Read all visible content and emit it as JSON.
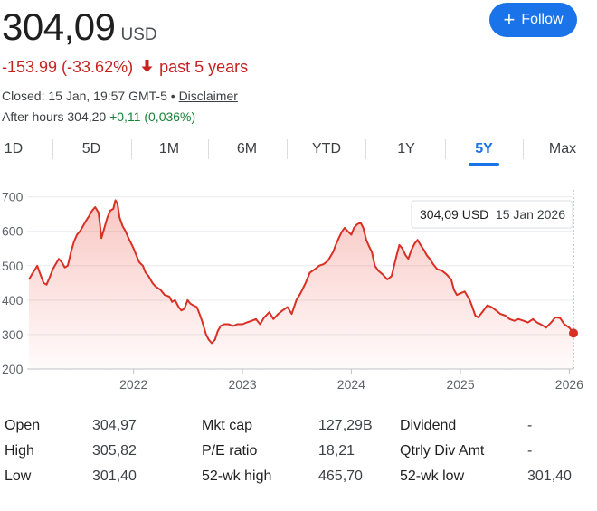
{
  "header": {
    "price": "304,09",
    "currency": "USD",
    "follow_label": "Follow",
    "follow_icon": "plus-icon",
    "change": "-153.99 (-33.62%)",
    "change_icon": "arrow-down-icon",
    "change_period": "past 5 years",
    "closed_text": "Closed: 15 Jan, 19:57 GMT-5 •",
    "disclaimer": "Disclaimer",
    "after_hours_label": "After hours 304,20",
    "after_hours_change": "+0,11 (0,036%)"
  },
  "colors": {
    "negative": "#c5221f",
    "positive": "#188038",
    "accent": "#1a73e8",
    "line": "#d93025"
  },
  "tabs": [
    {
      "label": "1D"
    },
    {
      "label": "5D"
    },
    {
      "label": "1M"
    },
    {
      "label": "6M"
    },
    {
      "label": "YTD"
    },
    {
      "label": "1Y"
    },
    {
      "label": "5Y",
      "active": true
    },
    {
      "label": "Max"
    }
  ],
  "chart_data": {
    "type": "area",
    "x_ticks": [
      "2022",
      "2023",
      "2024",
      "2025",
      "2026"
    ],
    "y_ticks": [
      200,
      300,
      400,
      500,
      600,
      700
    ],
    "ylim": [
      200,
      720
    ],
    "x_range": [
      "2021-01-15",
      "2026-01-15"
    ],
    "tooltip": {
      "price": "304,09 USD",
      "date": "15 Jan 2026"
    },
    "series": [
      {
        "points": [
          [
            "2021-01-15",
            460
          ],
          [
            "2021-01-25",
            475
          ],
          [
            "2021-02-05",
            490
          ],
          [
            "2021-02-12",
            500
          ],
          [
            "2021-02-20",
            480
          ],
          [
            "2021-03-05",
            450
          ],
          [
            "2021-03-15",
            445
          ],
          [
            "2021-03-25",
            465
          ],
          [
            "2021-04-05",
            490
          ],
          [
            "2021-04-15",
            505
          ],
          [
            "2021-04-25",
            520
          ],
          [
            "2021-05-05",
            510
          ],
          [
            "2021-05-15",
            495
          ],
          [
            "2021-05-25",
            500
          ],
          [
            "2021-06-05",
            540
          ],
          [
            "2021-06-15",
            570
          ],
          [
            "2021-06-25",
            590
          ],
          [
            "2021-07-05",
            600
          ],
          [
            "2021-07-15",
            615
          ],
          [
            "2021-07-25",
            630
          ],
          [
            "2021-08-05",
            645
          ],
          [
            "2021-08-15",
            660
          ],
          [
            "2021-08-25",
            670
          ],
          [
            "2021-09-05",
            655
          ],
          [
            "2021-09-10",
            620
          ],
          [
            "2021-09-15",
            580
          ],
          [
            "2021-09-25",
            610
          ],
          [
            "2021-10-05",
            640
          ],
          [
            "2021-10-15",
            660
          ],
          [
            "2021-10-25",
            665
          ],
          [
            "2021-11-01",
            690
          ],
          [
            "2021-11-08",
            680
          ],
          [
            "2021-11-15",
            640
          ],
          [
            "2021-11-25",
            615
          ],
          [
            "2021-12-05",
            600
          ],
          [
            "2021-12-15",
            580
          ],
          [
            "2022-01-01",
            550
          ],
          [
            "2022-01-10",
            530
          ],
          [
            "2022-01-20",
            510
          ],
          [
            "2022-02-01",
            500
          ],
          [
            "2022-02-10",
            480
          ],
          [
            "2022-02-20",
            470
          ],
          [
            "2022-03-05",
            450
          ],
          [
            "2022-03-15",
            440
          ],
          [
            "2022-04-01",
            430
          ],
          [
            "2022-04-15",
            415
          ],
          [
            "2022-05-01",
            410
          ],
          [
            "2022-05-10",
            395
          ],
          [
            "2022-05-20",
            400
          ],
          [
            "2022-06-01",
            380
          ],
          [
            "2022-06-10",
            370
          ],
          [
            "2022-06-20",
            375
          ],
          [
            "2022-07-01",
            400
          ],
          [
            "2022-07-10",
            390
          ],
          [
            "2022-07-20",
            385
          ],
          [
            "2022-08-01",
            380
          ],
          [
            "2022-08-10",
            360
          ],
          [
            "2022-08-20",
            335
          ],
          [
            "2022-09-01",
            300
          ],
          [
            "2022-09-10",
            285
          ],
          [
            "2022-09-20",
            275
          ],
          [
            "2022-10-01",
            285
          ],
          [
            "2022-10-10",
            310
          ],
          [
            "2022-10-20",
            325
          ],
          [
            "2022-11-01",
            330
          ],
          [
            "2022-11-15",
            330
          ],
          [
            "2022-12-01",
            325
          ],
          [
            "2022-12-15",
            330
          ],
          [
            "2023-01-01",
            330
          ],
          [
            "2023-01-15",
            335
          ],
          [
            "2023-02-01",
            340
          ],
          [
            "2023-02-15",
            345
          ],
          [
            "2023-03-01",
            330
          ],
          [
            "2023-03-15",
            350
          ],
          [
            "2023-04-01",
            365
          ],
          [
            "2023-04-15",
            345
          ],
          [
            "2023-05-01",
            360
          ],
          [
            "2023-05-15",
            370
          ],
          [
            "2023-06-01",
            380
          ],
          [
            "2023-06-15",
            360
          ],
          [
            "2023-07-01",
            400
          ],
          [
            "2023-07-15",
            420
          ],
          [
            "2023-08-01",
            450
          ],
          [
            "2023-08-15",
            480
          ],
          [
            "2023-09-01",
            490
          ],
          [
            "2023-09-15",
            500
          ],
          [
            "2023-10-01",
            505
          ],
          [
            "2023-10-15",
            515
          ],
          [
            "2023-11-01",
            540
          ],
          [
            "2023-11-10",
            560
          ],
          [
            "2023-11-20",
            580
          ],
          [
            "2023-12-01",
            600
          ],
          [
            "2023-12-10",
            610
          ],
          [
            "2023-12-20",
            600
          ],
          [
            "2024-01-01",
            590
          ],
          [
            "2024-01-10",
            610
          ],
          [
            "2024-01-20",
            620
          ],
          [
            "2024-02-01",
            625
          ],
          [
            "2024-02-10",
            610
          ],
          [
            "2024-02-20",
            575
          ],
          [
            "2024-03-01",
            555
          ],
          [
            "2024-03-10",
            540
          ],
          [
            "2024-03-20",
            500
          ],
          [
            "2024-04-01",
            485
          ],
          [
            "2024-04-15",
            475
          ],
          [
            "2024-05-01",
            460
          ],
          [
            "2024-05-15",
            470
          ],
          [
            "2024-06-01",
            530
          ],
          [
            "2024-06-10",
            560
          ],
          [
            "2024-06-20",
            550
          ],
          [
            "2024-07-01",
            530
          ],
          [
            "2024-07-10",
            520
          ],
          [
            "2024-07-20",
            545
          ],
          [
            "2024-08-01",
            565
          ],
          [
            "2024-08-10",
            575
          ],
          [
            "2024-08-20",
            560
          ],
          [
            "2024-09-01",
            545
          ],
          [
            "2024-09-10",
            530
          ],
          [
            "2024-09-20",
            520
          ],
          [
            "2024-10-01",
            505
          ],
          [
            "2024-10-15",
            490
          ],
          [
            "2024-11-01",
            485
          ],
          [
            "2024-11-15",
            475
          ],
          [
            "2024-12-01",
            460
          ],
          [
            "2024-12-10",
            430
          ],
          [
            "2024-12-20",
            415
          ],
          [
            "2025-01-01",
            420
          ],
          [
            "2025-01-15",
            425
          ],
          [
            "2025-02-01",
            400
          ],
          [
            "2025-02-10",
            380
          ],
          [
            "2025-02-20",
            355
          ],
          [
            "2025-03-01",
            350
          ],
          [
            "2025-03-15",
            365
          ],
          [
            "2025-04-01",
            385
          ],
          [
            "2025-04-15",
            380
          ],
          [
            "2025-05-01",
            370
          ],
          [
            "2025-05-15",
            360
          ],
          [
            "2025-06-01",
            355
          ],
          [
            "2025-06-15",
            345
          ],
          [
            "2025-07-01",
            340
          ],
          [
            "2025-07-15",
            345
          ],
          [
            "2025-08-01",
            340
          ],
          [
            "2025-08-15",
            335
          ],
          [
            "2025-09-01",
            345
          ],
          [
            "2025-09-15",
            335
          ],
          [
            "2025-10-01",
            328
          ],
          [
            "2025-10-15",
            320
          ],
          [
            "2025-11-01",
            335
          ],
          [
            "2025-11-15",
            350
          ],
          [
            "2025-12-01",
            348
          ],
          [
            "2025-12-15",
            330
          ],
          [
            "2026-01-01",
            320
          ],
          [
            "2026-01-15",
            304.09
          ]
        ]
      }
    ]
  },
  "stats": [
    [
      {
        "label": "Open",
        "value": "304,97"
      },
      {
        "label": "Mkt cap",
        "value": "127,29B"
      },
      {
        "label": "Dividend",
        "value": "-"
      }
    ],
    [
      {
        "label": "High",
        "value": "305,82"
      },
      {
        "label": "P/E ratio",
        "value": "18,21"
      },
      {
        "label": "Qtrly Div Amt",
        "value": "-"
      }
    ],
    [
      {
        "label": "Low",
        "value": "301,40"
      },
      {
        "label": "52-wk high",
        "value": "465,70"
      },
      {
        "label": "52-wk low",
        "value": "301,40"
      }
    ]
  ]
}
